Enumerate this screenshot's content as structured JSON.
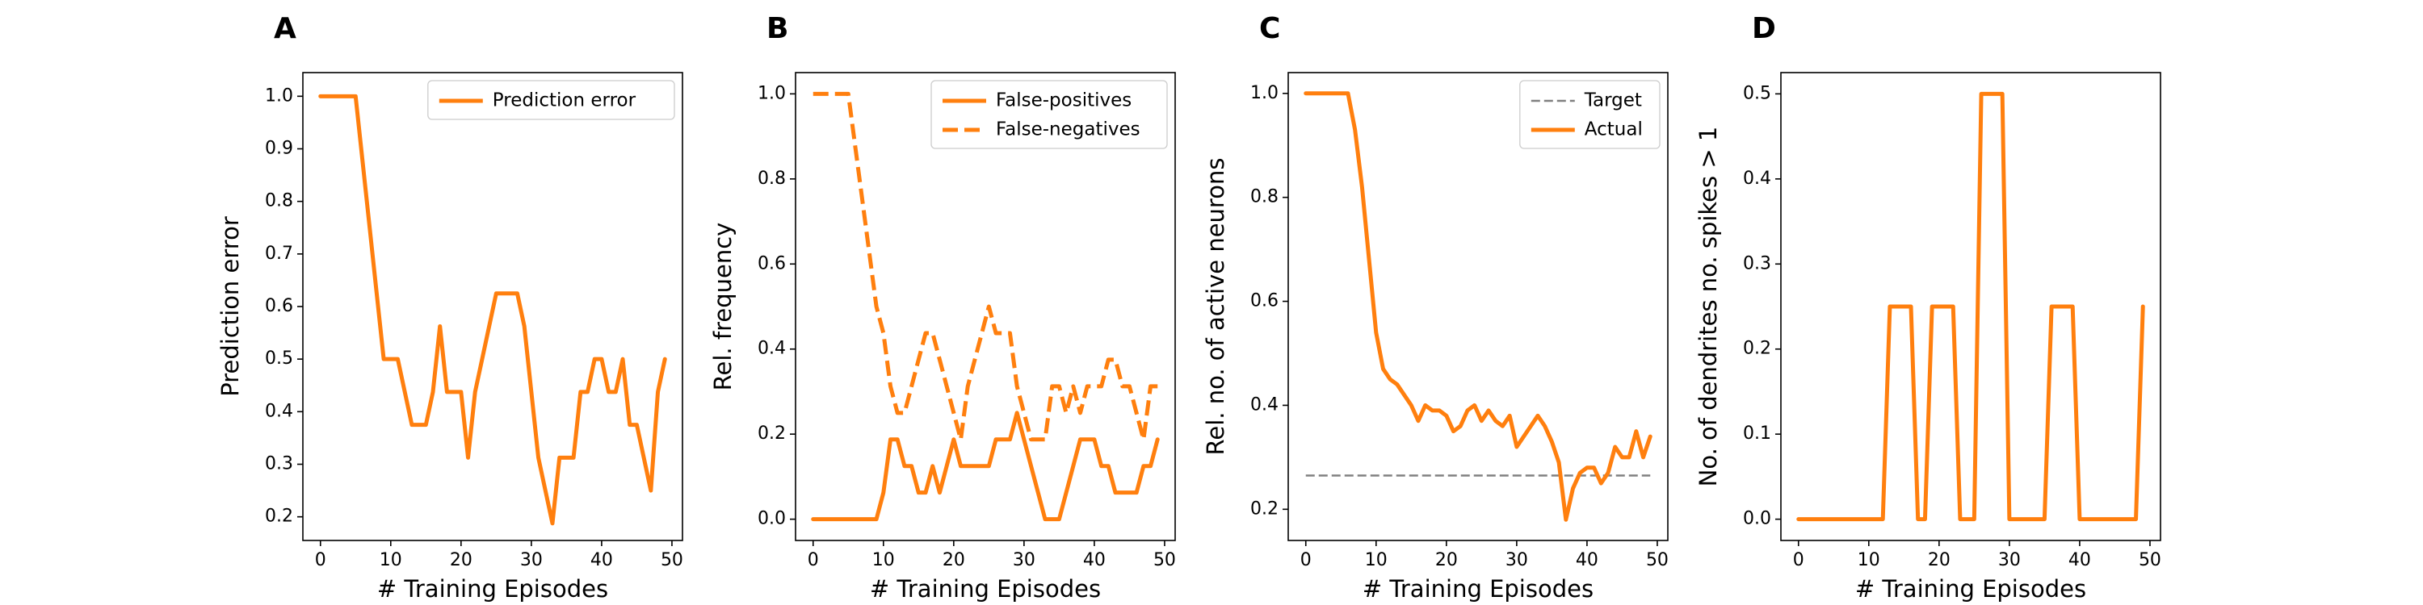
{
  "chart_data": [
    {
      "panel": "A",
      "type": "line",
      "xlabel": "# Training Episodes",
      "ylabel": "Prediction error",
      "xlim": [
        -2.5,
        51.5
      ],
      "ylim": [
        0.155,
        1.045
      ],
      "xticks": [
        0,
        10,
        20,
        30,
        40,
        50
      ],
      "yticks": [
        0.2,
        0.3,
        0.4,
        0.5,
        0.6,
        0.7,
        0.8,
        0.9,
        1.0
      ],
      "ytick_labels": [
        "0.2",
        "0.3",
        "0.4",
        "0.5",
        "0.6",
        "0.7",
        "0.8",
        "0.9",
        "1.0"
      ],
      "legend_position": "top-right",
      "series": [
        {
          "name": "Prediction error",
          "style": "solid",
          "color": "#ff7f0e",
          "x": [
            0,
            1,
            2,
            3,
            4,
            5,
            6,
            7,
            8,
            9,
            10,
            11,
            12,
            13,
            14,
            15,
            16,
            17,
            18,
            19,
            20,
            21,
            22,
            23,
            24,
            25,
            26,
            27,
            28,
            29,
            30,
            31,
            32,
            33,
            34,
            35,
            36,
            37,
            38,
            39,
            40,
            41,
            42,
            43,
            44,
            45,
            46,
            47,
            48,
            49
          ],
          "values": [
            1.0,
            1.0,
            1.0,
            1.0,
            1.0,
            1.0,
            0.875,
            0.75,
            0.625,
            0.5,
            0.5,
            0.5,
            0.4375,
            0.375,
            0.375,
            0.375,
            0.4375,
            0.5625,
            0.4375,
            0.4375,
            0.4375,
            0.3125,
            0.4375,
            0.5,
            0.5625,
            0.625,
            0.625,
            0.625,
            0.625,
            0.5625,
            0.4375,
            0.3125,
            0.25,
            0.1875,
            0.3125,
            0.3125,
            0.3125,
            0.4375,
            0.4375,
            0.5,
            0.5,
            0.4375,
            0.4375,
            0.5,
            0.375,
            0.375,
            0.3125,
            0.25,
            0.4375,
            0.5
          ]
        }
      ]
    },
    {
      "panel": "B",
      "type": "line",
      "xlabel": "# Training Episodes",
      "ylabel": "Rel. frequency",
      "xlim": [
        -2.5,
        51.5
      ],
      "ylim": [
        -0.05,
        1.05
      ],
      "xticks": [
        0,
        10,
        20,
        30,
        40,
        50
      ],
      "yticks": [
        0.0,
        0.2,
        0.4,
        0.6,
        0.8,
        1.0
      ],
      "ytick_labels": [
        "0.0",
        "0.2",
        "0.4",
        "0.6",
        "0.8",
        "1.0"
      ],
      "legend_position": "top-right",
      "series": [
        {
          "name": "False-positives",
          "style": "solid",
          "color": "#ff7f0e",
          "x": [
            0,
            1,
            2,
            3,
            4,
            5,
            6,
            7,
            8,
            9,
            10,
            11,
            12,
            13,
            14,
            15,
            16,
            17,
            18,
            19,
            20,
            21,
            22,
            23,
            24,
            25,
            26,
            27,
            28,
            29,
            30,
            31,
            32,
            33,
            34,
            35,
            36,
            37,
            38,
            39,
            40,
            41,
            42,
            43,
            44,
            45,
            46,
            47,
            48,
            49
          ],
          "values": [
            0,
            0,
            0,
            0,
            0,
            0,
            0,
            0,
            0,
            0,
            0.0625,
            0.1875,
            0.1875,
            0.125,
            0.125,
            0.0625,
            0.0625,
            0.125,
            0.0625,
            0.125,
            0.1875,
            0.125,
            0.125,
            0.125,
            0.125,
            0.125,
            0.1875,
            0.1875,
            0.1875,
            0.25,
            0.1875,
            0.125,
            0.0625,
            0,
            0,
            0,
            0.0625,
            0.125,
            0.1875,
            0.1875,
            0.1875,
            0.125,
            0.125,
            0.0625,
            0.0625,
            0.0625,
            0.0625,
            0.125,
            0.125,
            0.1875
          ]
        },
        {
          "name": "False-negatives",
          "style": "dashed",
          "color": "#ff7f0e",
          "x": [
            0,
            1,
            2,
            3,
            4,
            5,
            6,
            7,
            8,
            9,
            10,
            11,
            12,
            13,
            14,
            15,
            16,
            17,
            18,
            19,
            20,
            21,
            22,
            23,
            24,
            25,
            26,
            27,
            28,
            29,
            30,
            31,
            32,
            33,
            34,
            35,
            36,
            37,
            38,
            39,
            40,
            41,
            42,
            43,
            44,
            45,
            46,
            47,
            48,
            49
          ],
          "values": [
            1.0,
            1.0,
            1.0,
            1.0,
            1.0,
            1.0,
            0.875,
            0.75,
            0.625,
            0.5,
            0.4375,
            0.3125,
            0.25,
            0.25,
            0.3125,
            0.375,
            0.4375,
            0.4375,
            0.375,
            0.3125,
            0.25,
            0.1875,
            0.3125,
            0.375,
            0.4375,
            0.5,
            0.4375,
            0.4375,
            0.4375,
            0.3125,
            0.25,
            0.1875,
            0.1875,
            0.1875,
            0.3125,
            0.3125,
            0.25,
            0.3125,
            0.25,
            0.3125,
            0.3125,
            0.3125,
            0.375,
            0.375,
            0.3125,
            0.3125,
            0.25,
            0.1875,
            0.3125,
            0.3125
          ]
        }
      ]
    },
    {
      "panel": "C",
      "type": "line",
      "xlabel": "# Training Episodes",
      "ylabel": "Rel. no. of active neurons",
      "xlim": [
        -2.5,
        51.5
      ],
      "ylim": [
        0.14,
        1.04
      ],
      "xticks": [
        0,
        10,
        20,
        30,
        40,
        50
      ],
      "yticks": [
        0.2,
        0.4,
        0.6,
        0.8,
        1.0
      ],
      "ytick_labels": [
        "0.2",
        "0.4",
        "0.6",
        "0.8",
        "1.0"
      ],
      "legend_position": "top-right",
      "series": [
        {
          "name": "Target",
          "style": "dashed",
          "color": "#808080",
          "x": [
            0,
            49
          ],
          "values": [
            0.265,
            0.265
          ]
        },
        {
          "name": "Actual",
          "style": "solid",
          "color": "#ff7f0e",
          "x": [
            0,
            1,
            2,
            3,
            4,
            5,
            6,
            7,
            8,
            9,
            10,
            11,
            12,
            13,
            14,
            15,
            16,
            17,
            18,
            19,
            20,
            21,
            22,
            23,
            24,
            25,
            26,
            27,
            28,
            29,
            30,
            31,
            32,
            33,
            34,
            35,
            36,
            37,
            38,
            39,
            40,
            41,
            42,
            43,
            44,
            45,
            46,
            47,
            48,
            49
          ],
          "values": [
            1.0,
            1.0,
            1.0,
            1.0,
            1.0,
            1.0,
            1.0,
            0.93,
            0.82,
            0.68,
            0.54,
            0.47,
            0.45,
            0.44,
            0.42,
            0.4,
            0.37,
            0.4,
            0.39,
            0.39,
            0.38,
            0.35,
            0.36,
            0.39,
            0.4,
            0.37,
            0.39,
            0.37,
            0.36,
            0.38,
            0.32,
            0.34,
            0.36,
            0.38,
            0.36,
            0.33,
            0.29,
            0.18,
            0.24,
            0.27,
            0.28,
            0.28,
            0.25,
            0.27,
            0.32,
            0.3,
            0.3,
            0.35,
            0.3,
            0.34
          ]
        }
      ]
    },
    {
      "panel": "D",
      "type": "line",
      "xlabel": "# Training Episodes",
      "ylabel": "No. of dendrites no. spikes > 1",
      "xlim": [
        -2.5,
        51.5
      ],
      "ylim": [
        -0.025,
        0.525
      ],
      "xticks": [
        0,
        10,
        20,
        30,
        40,
        50
      ],
      "yticks": [
        0.0,
        0.1,
        0.2,
        0.3,
        0.4,
        0.5
      ],
      "ytick_labels": [
        "0.0",
        "0.1",
        "0.2",
        "0.3",
        "0.4",
        "0.5"
      ],
      "legend_position": "none",
      "series": [
        {
          "name": "",
          "style": "solid",
          "color": "#ff7f0e",
          "x": [
            0,
            1,
            2,
            3,
            4,
            5,
            6,
            7,
            8,
            9,
            10,
            11,
            12,
            13,
            14,
            15,
            16,
            17,
            18,
            19,
            20,
            21,
            22,
            23,
            24,
            25,
            26,
            27,
            28,
            29,
            30,
            31,
            32,
            33,
            34,
            35,
            36,
            37,
            38,
            39,
            40,
            41,
            42,
            43,
            44,
            45,
            46,
            47,
            48,
            49
          ],
          "values": [
            0,
            0,
            0,
            0,
            0,
            0,
            0,
            0,
            0,
            0,
            0,
            0,
            0,
            0.25,
            0.25,
            0.25,
            0.25,
            0,
            0,
            0.25,
            0.25,
            0.25,
            0.25,
            0,
            0,
            0,
            0.5,
            0.5,
            0.5,
            0.5,
            0,
            0,
            0,
            0,
            0,
            0,
            0.25,
            0.25,
            0.25,
            0.25,
            0,
            0,
            0,
            0,
            0,
            0,
            0,
            0,
            0,
            0.25
          ]
        }
      ]
    }
  ]
}
